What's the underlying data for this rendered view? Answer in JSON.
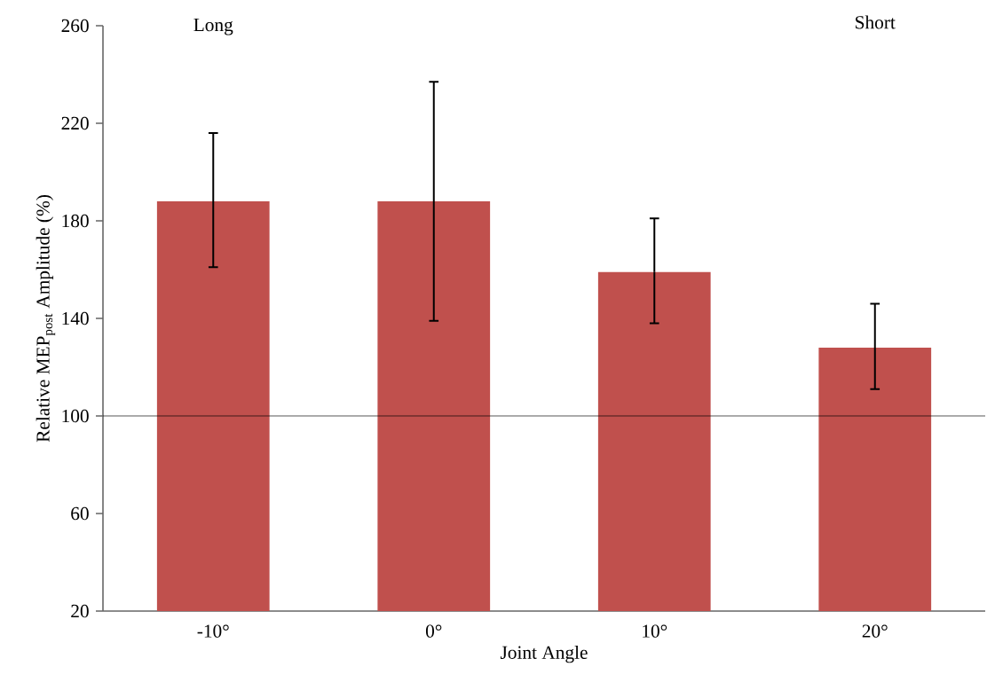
{
  "chart_data": {
    "type": "bar",
    "categories": [
      "-10°",
      "0°",
      "10°",
      "20°"
    ],
    "xlabel": "Joint Angle",
    "ylabel": "Relative MEP$_{post}$ Amplitude (%)",
    "series": [
      {
        "color": "#c0504d",
        "values": [
          188,
          188,
          159,
          128
        ],
        "errors": [
          [
            161,
            216
          ],
          [
            139,
            237
          ],
          [
            138,
            181
          ],
          [
            111,
            146
          ]
        ]
      }
    ],
    "ylim": [
      20,
      260
    ],
    "yticks": [
      20,
      60,
      100,
      140,
      180,
      220,
      260
    ],
    "ref_lines": [
      {
        "axis": "y",
        "value": 100
      }
    ],
    "annotations": [
      "Long",
      "Short"
    ]
  }
}
